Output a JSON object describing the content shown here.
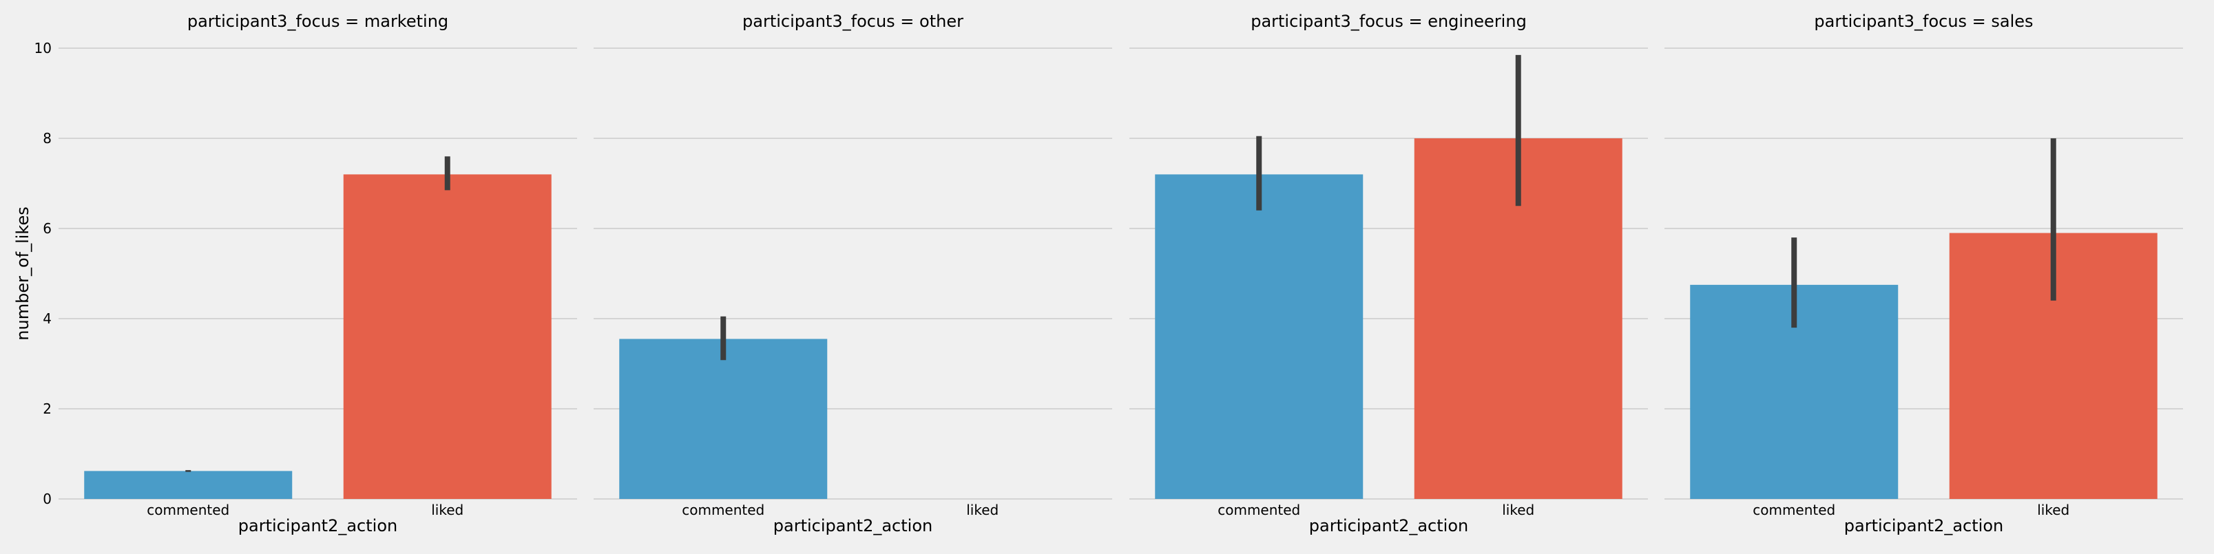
{
  "chart_data": {
    "type": "bar",
    "ylabel": "number_of_likes",
    "xlabel": "participant2_action",
    "ylim": [
      0,
      10
    ],
    "y_ticks": [
      "0",
      "2",
      "4",
      "6",
      "8",
      "10"
    ],
    "categories": [
      "commented",
      "liked"
    ],
    "colors": {
      "commented": "#4a9cc8",
      "liked": "#e5604a",
      "errorbar": "#3d3d3d",
      "grid": "#cbcbcb",
      "background": "#f0f0f0"
    },
    "grid": true,
    "facets": [
      {
        "title": "participant3_focus = marketing",
        "values": [
          0.62,
          7.2
        ],
        "ci": [
          [
            0.6,
            0.64
          ],
          [
            6.85,
            7.6
          ]
        ]
      },
      {
        "title": "participant3_focus = other",
        "values": [
          3.55,
          null
        ],
        "ci": [
          [
            3.08,
            4.05
          ],
          null
        ]
      },
      {
        "title": "participant3_focus = engineering",
        "values": [
          7.2,
          8.0
        ],
        "ci": [
          [
            6.4,
            8.05
          ],
          [
            6.5,
            9.85
          ]
        ]
      },
      {
        "title": "participant3_focus = sales",
        "values": [
          4.75,
          5.9
        ],
        "ci": [
          [
            3.8,
            5.8
          ],
          [
            4.4,
            8.0
          ]
        ]
      }
    ]
  }
}
